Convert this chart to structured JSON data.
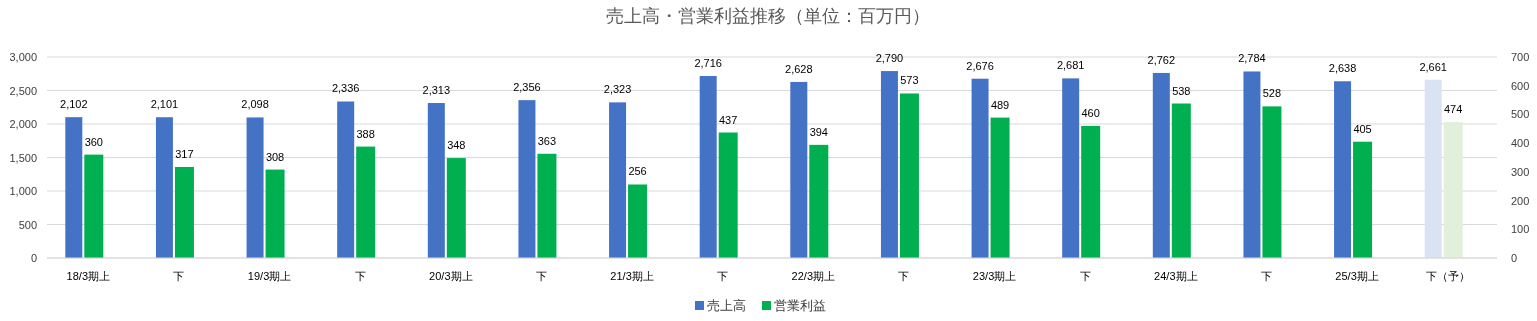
{
  "chart_data": {
    "type": "bar",
    "title": "売上高・営業利益推移（単位：百万円）",
    "categories": [
      "18/3期上",
      "下",
      "19/3期上",
      "下",
      "20/3期上",
      "下",
      "21/3期上",
      "下",
      "22/3期上",
      "下",
      "23/3期上",
      "下",
      "24/3期上",
      "下",
      "25/3期上",
      "下（予）"
    ],
    "series": [
      {
        "name": "売上高",
        "color": "#4472c4",
        "colors": [
          "#4472c4",
          "#4472c4",
          "#4472c4",
          "#4472c4",
          "#4472c4",
          "#4472c4",
          "#4472c4",
          "#4472c4",
          "#4472c4",
          "#4472c4",
          "#4472c4",
          "#4472c4",
          "#4472c4",
          "#4472c4",
          "#4472c4",
          "#dae3f3"
        ],
        "values": [
          2102,
          2101,
          2098,
          2336,
          2313,
          2356,
          2323,
          2716,
          2628,
          2790,
          2676,
          2681,
          2762,
          2784,
          2638,
          2661
        ],
        "value_labels": [
          "2,102",
          "2,101",
          "2,098",
          "2,336",
          "2,313",
          "2,356",
          "2,323",
          "2,716",
          "2,628",
          "2,790",
          "2,676",
          "2,681",
          "2,762",
          "2,784",
          "2,638",
          "2,661"
        ]
      },
      {
        "name": "営業利益",
        "color": "#00b050",
        "axis": "y2",
        "colors": [
          "#00b050",
          "#00b050",
          "#00b050",
          "#00b050",
          "#00b050",
          "#00b050",
          "#00b050",
          "#00b050",
          "#00b050",
          "#00b050",
          "#00b050",
          "#00b050",
          "#00b050",
          "#00b050",
          "#00b050",
          "#e2efda"
        ],
        "values": [
          360,
          317,
          308,
          388,
          348,
          363,
          256,
          437,
          394,
          573,
          489,
          460,
          538,
          528,
          405,
          474
        ],
        "value_labels": [
          "360",
          "317",
          "308",
          "388",
          "348",
          "363",
          "256",
          "437",
          "394",
          "573",
          "489",
          "460",
          "538",
          "528",
          "405",
          "474"
        ]
      }
    ],
    "ylim": [
      0,
      3000
    ],
    "yticks": [
      {
        "value": 0,
        "label": "0"
      },
      {
        "value": 500,
        "label": "500"
      },
      {
        "value": 1000,
        "label": "1,000"
      },
      {
        "value": 1500,
        "label": "1,500"
      },
      {
        "value": 2000,
        "label": "2,000"
      },
      {
        "value": 2500,
        "label": "2,500"
      },
      {
        "value": 3000,
        "label": "3,000"
      }
    ],
    "y2lim": [
      0,
      700
    ],
    "y2ticks": [
      0,
      100,
      200,
      300,
      400,
      500,
      600,
      700
    ],
    "grid": "y",
    "legend": "bottom"
  }
}
